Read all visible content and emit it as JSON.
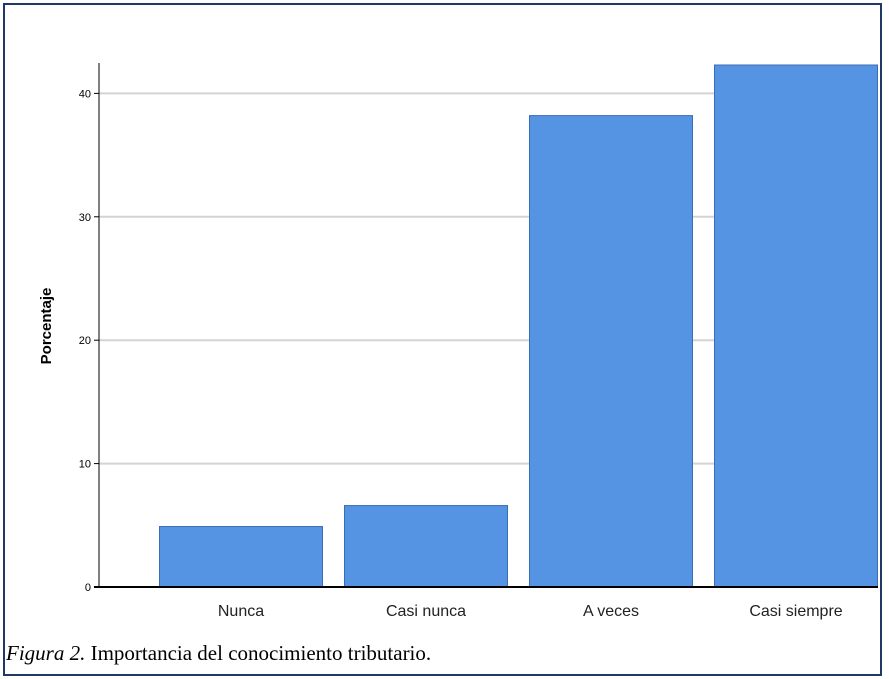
{
  "caption": {
    "figure_label": "Figura 2.",
    "text": " Importancia del conocimiento tributario."
  },
  "colors": {
    "bar_fill": "#5593e3",
    "bar_stroke": "#3b6db5",
    "grid": "#d3d3d3",
    "axis": "#000000",
    "frame_border": "#1f3864"
  },
  "chart_data": {
    "type": "bar",
    "title": "",
    "xlabel": "",
    "ylabel": "Porcentaje",
    "categories": [
      "Nunca",
      "Casi nunca",
      "A veces",
      "Casi siempre"
    ],
    "values": [
      4.9,
      6.6,
      38.2,
      42.3
    ],
    "ylim": [
      0,
      42.3
    ],
    "yticks": [
      0,
      10,
      20,
      30,
      40
    ],
    "grid": true,
    "legend": "none"
  }
}
